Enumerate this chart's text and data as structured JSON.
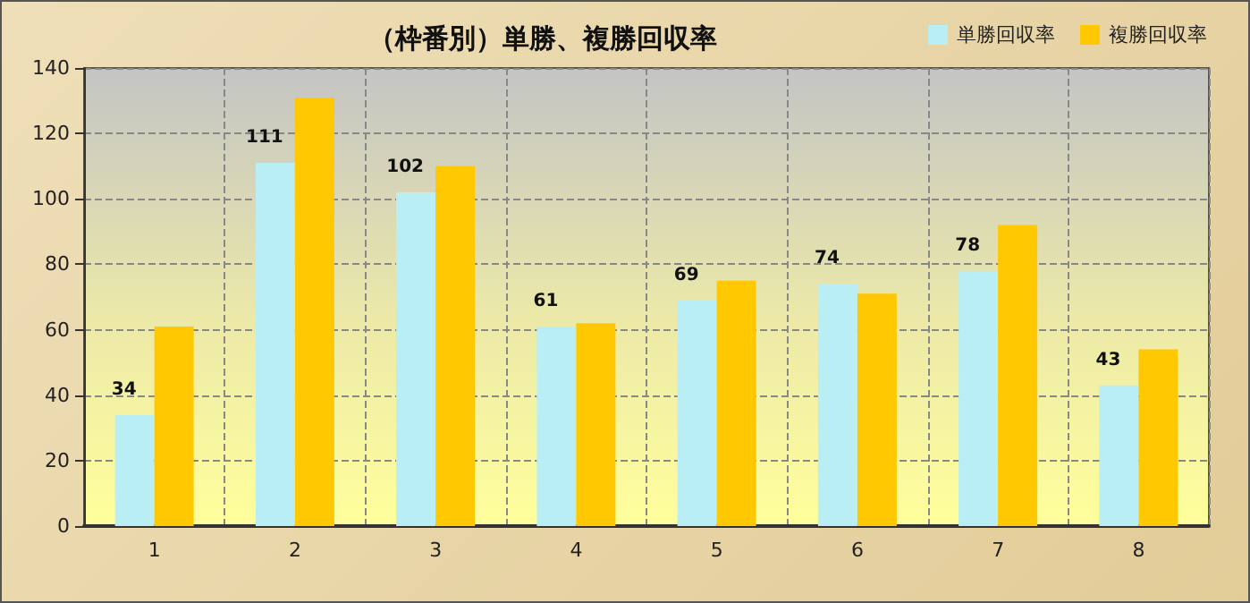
{
  "chart_data": {
    "type": "bar",
    "title": "（枠番別）単勝、複勝回収率",
    "categories": [
      "1",
      "2",
      "3",
      "4",
      "5",
      "6",
      "7",
      "8"
    ],
    "series": [
      {
        "name": "単勝回収率",
        "color": "#b8eef4",
        "values": [
          34,
          111,
          102,
          61,
          69,
          74,
          78,
          43
        ],
        "value_labels": [
          "34",
          "111",
          "102",
          "61",
          "69",
          "74",
          "78",
          "43"
        ]
      },
      {
        "name": "複勝回収率",
        "color": "#ffc800",
        "values": [
          61,
          131,
          110,
          62,
          75,
          71,
          92,
          54
        ]
      }
    ],
    "ylim": [
      0,
      140
    ],
    "yticks": [
      0,
      20,
      40,
      60,
      80,
      100,
      120,
      140
    ],
    "grid": true,
    "legend": "top right"
  }
}
